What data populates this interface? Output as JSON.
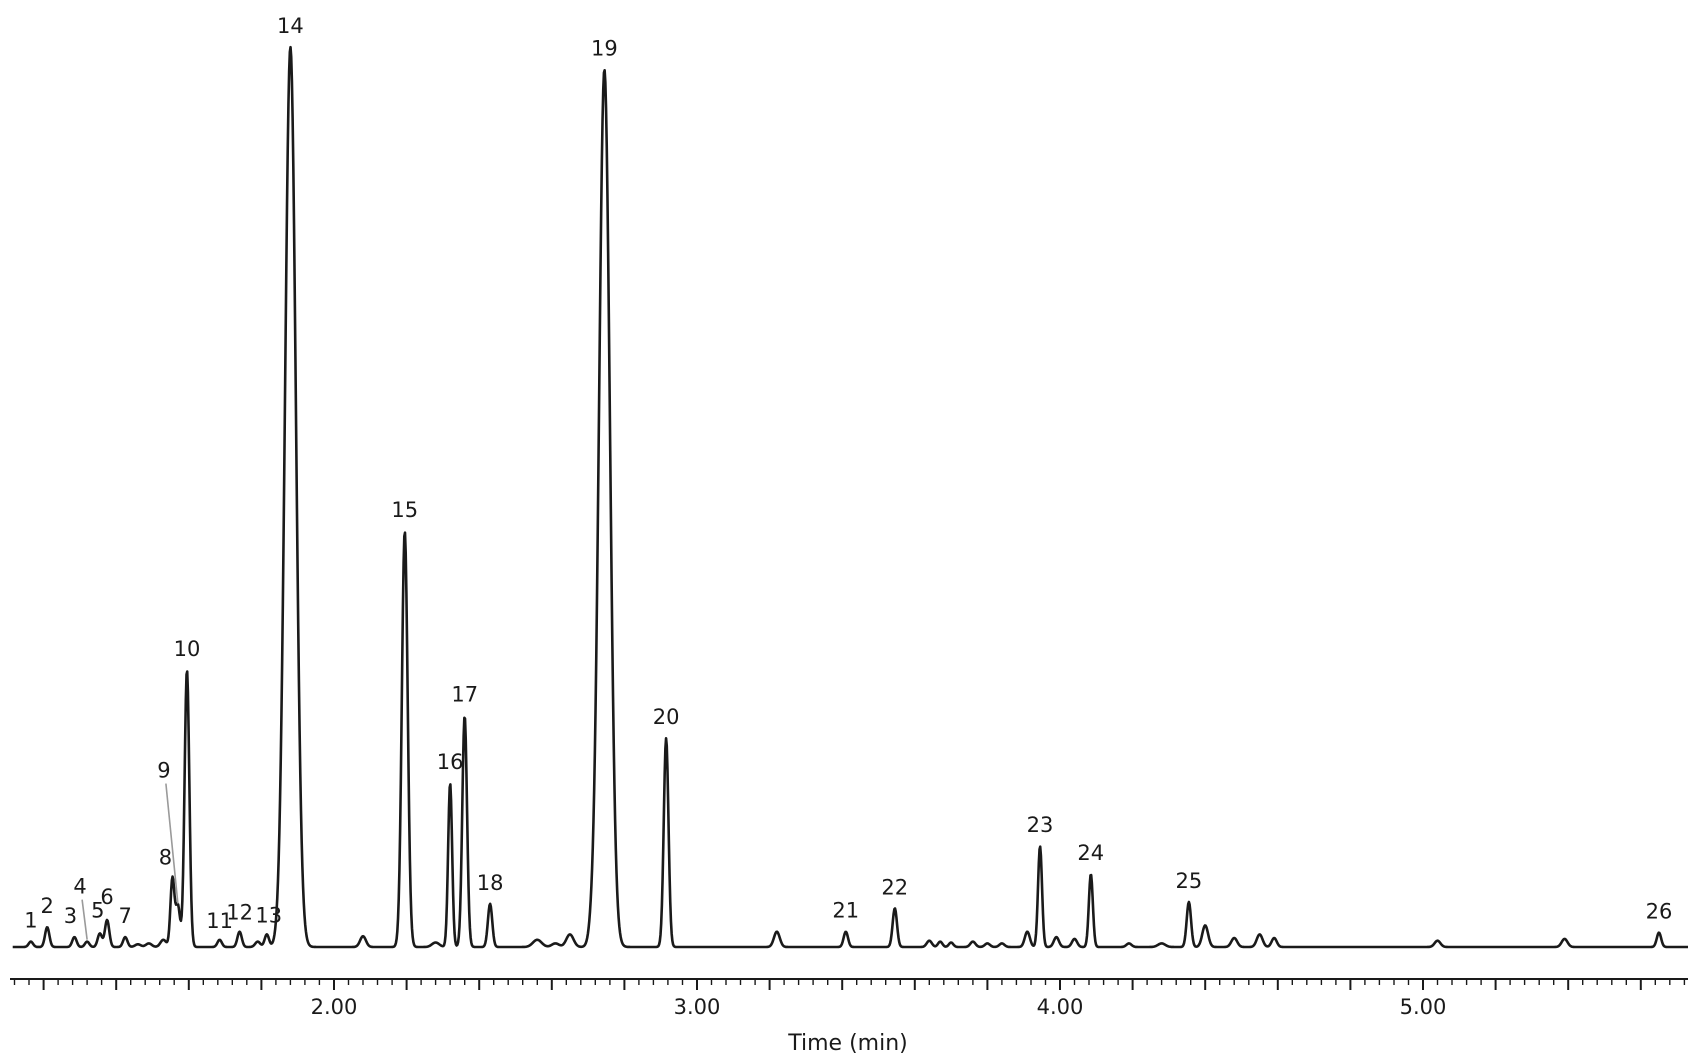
{
  "chart_data": {
    "type": "line",
    "title": "",
    "xlabel": "Time (min)",
    "ylabel": "",
    "xlim": [
      1.08,
      5.73
    ],
    "ylim": [
      0,
      1.0
    ],
    "grid": false,
    "legend": "none",
    "x_ticks": [
      {
        "value": 2.0,
        "label": "2.00"
      },
      {
        "value": 3.0,
        "label": "3.00"
      },
      {
        "value": 4.0,
        "label": "4.00"
      },
      {
        "value": 5.0,
        "label": "5.00"
      }
    ],
    "minor_tick_step": 0.04,
    "line_color": "#1a1a1a",
    "leader_color": "#9a9a9a",
    "peaks": [
      {
        "label": "1",
        "x": 1.165,
        "y": 0.006
      },
      {
        "label": "2",
        "x": 1.21,
        "y": 0.022
      },
      {
        "label": "3",
        "x": 1.285,
        "y": 0.011
      },
      {
        "label": "4",
        "x": 1.32,
        "y": 0.006,
        "leader": true
      },
      {
        "label": "5",
        "x": 1.355,
        "y": 0.015
      },
      {
        "label": "6",
        "x": 1.375,
        "y": 0.03
      },
      {
        "label": "7",
        "x": 1.425,
        "y": 0.011
      },
      {
        "label": "8",
        "x": 1.555,
        "y": 0.076
      },
      {
        "label": "9",
        "x": 1.57,
        "y": 0.046,
        "leader": true
      },
      {
        "label": "10",
        "x": 1.595,
        "y": 0.308
      },
      {
        "label": "11",
        "x": 1.685,
        "y": 0.008
      },
      {
        "label": "12",
        "x": 1.74,
        "y": 0.017
      },
      {
        "label": "13",
        "x": 1.815,
        "y": 0.014
      },
      {
        "label": "14",
        "x": 1.88,
        "y": 1.0
      },
      {
        "label": "15",
        "x": 2.195,
        "y": 0.462
      },
      {
        "label": "16",
        "x": 2.32,
        "y": 0.182
      },
      {
        "label": "17",
        "x": 2.36,
        "y": 0.257
      },
      {
        "label": "18",
        "x": 2.43,
        "y": 0.048
      },
      {
        "label": "19",
        "x": 2.745,
        "y": 0.975
      },
      {
        "label": "20",
        "x": 2.915,
        "y": 0.232
      },
      {
        "label": "21",
        "x": 3.41,
        "y": 0.017
      },
      {
        "label": "22",
        "x": 3.545,
        "y": 0.043
      },
      {
        "label": "23",
        "x": 3.945,
        "y": 0.112
      },
      {
        "label": "24",
        "x": 4.085,
        "y": 0.081
      },
      {
        "label": "25",
        "x": 4.355,
        "y": 0.05
      },
      {
        "label": "26",
        "x": 5.65,
        "y": 0.016
      }
    ],
    "minor_peaks": [
      {
        "x": 1.46,
        "y": 0.003,
        "w": 0.008
      },
      {
        "x": 1.49,
        "y": 0.004,
        "w": 0.008
      },
      {
        "x": 1.53,
        "y": 0.008,
        "w": 0.008
      },
      {
        "x": 1.79,
        "y": 0.006,
        "w": 0.007
      },
      {
        "x": 2.08,
        "y": 0.012,
        "w": 0.008
      },
      {
        "x": 2.28,
        "y": 0.005,
        "w": 0.01
      },
      {
        "x": 2.56,
        "y": 0.008,
        "w": 0.012
      },
      {
        "x": 2.61,
        "y": 0.004,
        "w": 0.01
      },
      {
        "x": 2.65,
        "y": 0.014,
        "w": 0.01
      },
      {
        "x": 2.71,
        "y": 0.012,
        "w": 0.008
      },
      {
        "x": 3.22,
        "y": 0.017,
        "w": 0.008
      },
      {
        "x": 3.64,
        "y": 0.007,
        "w": 0.007
      },
      {
        "x": 3.67,
        "y": 0.006,
        "w": 0.006
      },
      {
        "x": 3.7,
        "y": 0.005,
        "w": 0.006
      },
      {
        "x": 3.76,
        "y": 0.006,
        "w": 0.007
      },
      {
        "x": 3.8,
        "y": 0.004,
        "w": 0.007
      },
      {
        "x": 3.84,
        "y": 0.004,
        "w": 0.007
      },
      {
        "x": 3.91,
        "y": 0.017,
        "w": 0.007
      },
      {
        "x": 3.99,
        "y": 0.011,
        "w": 0.007
      },
      {
        "x": 4.04,
        "y": 0.009,
        "w": 0.007
      },
      {
        "x": 4.19,
        "y": 0.004,
        "w": 0.007
      },
      {
        "x": 4.28,
        "y": 0.004,
        "w": 0.01
      },
      {
        "x": 4.4,
        "y": 0.024,
        "w": 0.008
      },
      {
        "x": 4.48,
        "y": 0.01,
        "w": 0.008
      },
      {
        "x": 4.55,
        "y": 0.014,
        "w": 0.008
      },
      {
        "x": 4.59,
        "y": 0.01,
        "w": 0.007
      },
      {
        "x": 5.04,
        "y": 0.007,
        "w": 0.008
      },
      {
        "x": 5.39,
        "y": 0.009,
        "w": 0.008
      }
    ]
  }
}
